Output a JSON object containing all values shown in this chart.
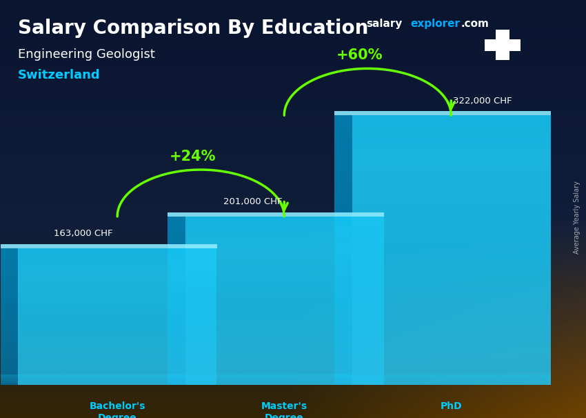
{
  "title": "Salary Comparison By Education",
  "subtitle_job": "Engineering Geologist",
  "subtitle_country": "Switzerland",
  "categories": [
    "Bachelor's\nDegree",
    "Master's\nDegree",
    "PhD"
  ],
  "values": [
    163000,
    201000,
    322000
  ],
  "value_labels": [
    "163,000 CHF",
    "201,000 CHF",
    "322,000 CHF"
  ],
  "pct_labels": [
    "+24%",
    "+60%"
  ],
  "site_salary_color": "#ffffff",
  "site_explorer_color": "#00aaff",
  "site_com_color": "#ffffff",
  "arrow_color": "#66ff00",
  "bar_cyan_light": "#40e0ff",
  "bar_cyan_dark": "#0090bb",
  "bar_cyan_side": "#0077aa",
  "label_color": "#ffffff",
  "cat_label_color": "#00ccff",
  "country_color": "#00ccff",
  "bg_top": "#0a1530",
  "bg_mid": "#12203a",
  "bg_bot_left": "#3a2a08",
  "bg_bot_right": "#4a3010",
  "ylim_max": 400000,
  "bar_width": 0.38,
  "bar_positions": [
    0.18,
    0.5,
    0.82
  ],
  "ylabel_text": "Average Yearly Salary"
}
